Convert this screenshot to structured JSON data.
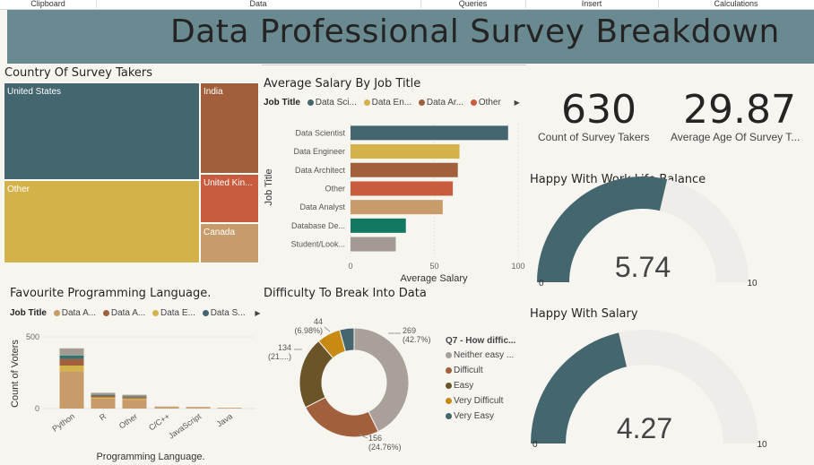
{
  "ribbon": [
    "Clipboard",
    "Data",
    "Queries",
    "Insert",
    "Calculations"
  ],
  "dashboard_title": "Data Professional Survey Breakdown",
  "treemap": {
    "title": "Country Of Survey Takers",
    "items": [
      {
        "label": "United States",
        "color": "#44666f"
      },
      {
        "label": "Other",
        "color": "#d4b24a"
      },
      {
        "label": "India",
        "color": "#a15f3b"
      },
      {
        "label": "United Kin...",
        "color": "#c95b3e"
      },
      {
        "label": "Canada",
        "color": "#c89c6a"
      }
    ]
  },
  "cards": [
    {
      "value": "630",
      "label": "Count of Survey Takers"
    },
    {
      "value": "29.87",
      "label": "Average Age Of Survey T..."
    }
  ],
  "gauges": [
    {
      "title": "Happy With Work Life Balance",
      "value": 5.74,
      "display": "5.74",
      "min": 0,
      "max": 10,
      "min_label": "0",
      "max_label": "10",
      "color": "#44666f",
      "track": "#efedea"
    },
    {
      "title": "Happy With Salary",
      "value": 4.27,
      "display": "4.27",
      "min": 0,
      "max": 10,
      "min_label": "0",
      "max_label": "10",
      "color": "#44666f",
      "track": "#efedea"
    }
  ],
  "chart_data": [
    {
      "type": "bar",
      "orientation": "horizontal",
      "title": "Average Salary By Job Title",
      "legend_title": "Job Title",
      "legend": [
        {
          "label": "Data Sci...",
          "color": "#44666f"
        },
        {
          "label": "Data En...",
          "color": "#d4b24a"
        },
        {
          "label": "Data Ar...",
          "color": "#a15f3b"
        },
        {
          "label": "Other",
          "color": "#c95b3e"
        }
      ],
      "categories": [
        "Data Scientist",
        "Data Engineer",
        "Data Architect",
        "Other",
        "Data Analyst",
        "Database De...",
        "Student/Look..."
      ],
      "values": [
        94,
        65,
        64,
        61,
        55,
        33,
        27
      ],
      "colors": [
        "#44666f",
        "#d4b24a",
        "#a15f3b",
        "#c95b3e",
        "#c89c6a",
        "#127862",
        "#a39a92"
      ],
      "xlabel": "Average Salary",
      "ylabel": "Job Title",
      "xlim": [
        0,
        100
      ],
      "xticks": [
        "0",
        "50",
        "100"
      ],
      "grid": true
    },
    {
      "type": "bar",
      "stacked": true,
      "title": "Favourite Programming Language.",
      "legend_title": "Job Title",
      "legend": [
        {
          "label": "Data A...",
          "color": "#c89c6a"
        },
        {
          "label": "Data A...",
          "color": "#a15f3b"
        },
        {
          "label": "Data E...",
          "color": "#d4b24a"
        },
        {
          "label": "Data S...",
          "color": "#44666f"
        }
      ],
      "categories": [
        "Python",
        "R",
        "Other",
        "C/C++",
        "JavaScript",
        "Java"
      ],
      "series": [
        {
          "color": "#c89c6a",
          "values": [
            260,
            70,
            62,
            8,
            6,
            3
          ]
        },
        {
          "color": "#d4b24a",
          "values": [
            40,
            8,
            8,
            2,
            2,
            1
          ]
        },
        {
          "color": "#a15f3b",
          "values": [
            45,
            12,
            10,
            2,
            2,
            1
          ]
        },
        {
          "color": "#44666f",
          "values": [
            15,
            5,
            4,
            0,
            0,
            0
          ]
        },
        {
          "color": "#127862",
          "values": [
            10,
            3,
            2,
            0,
            0,
            0
          ]
        },
        {
          "color": "#a39a92",
          "values": [
            50,
            12,
            10,
            2,
            1,
            0
          ]
        }
      ],
      "xlabel": "Programming Language.",
      "ylabel": "Count of Voters",
      "ylim": [
        0,
        640
      ],
      "yticks": [
        "0",
        "500"
      ]
    },
    {
      "type": "pie",
      "donut": true,
      "title": "Difficulty To Break Into Data",
      "legend_title": "Q7 - How diffic...",
      "slices": [
        {
          "label": "Neither easy ...",
          "value": 269,
          "pct": "42.7%",
          "color": "#a9a09a"
        },
        {
          "label": "Difficult",
          "value": 156,
          "pct": "24.76%",
          "color": "#a15f3b"
        },
        {
          "label": "Easy",
          "value": 134,
          "pct": "21....",
          "color": "#6b5427"
        },
        {
          "label": "Very Difficult",
          "value": 44,
          "pct": "6.98%",
          "color": "#c88a12"
        },
        {
          "label": "Very Easy",
          "value": 27,
          "pct": "",
          "color": "#44666f"
        }
      ]
    }
  ]
}
